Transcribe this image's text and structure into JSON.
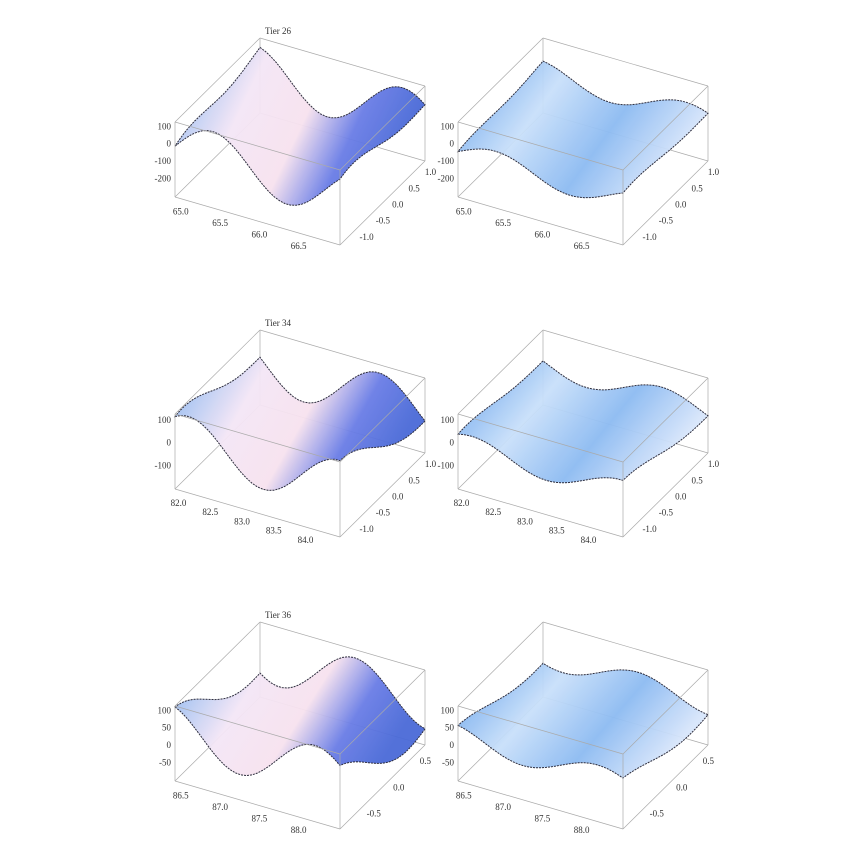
{
  "panels": [
    {
      "title": "Tier 26",
      "zticks": [
        "100",
        "0",
        "-100",
        "-200"
      ],
      "xticks": [
        "65.0",
        "65.5",
        "66.0",
        "66.5"
      ],
      "yticks": [
        "1.0",
        "0.5",
        "0.0",
        "-0.5",
        "-1.0"
      ]
    },
    {
      "zticks": [
        "100",
        "0",
        "-100",
        "-200"
      ],
      "xticks": [
        "65.0",
        "65.5",
        "66.0",
        "66.5"
      ],
      "yticks": [
        "1.0",
        "0.5",
        "0.0",
        "-0.5",
        "-1.0"
      ]
    },
    {
      "title": "Tier 34",
      "zticks": [
        "100",
        "0",
        "-100"
      ],
      "xticks": [
        "82.0",
        "82.5",
        "83.0",
        "83.5",
        "84.0"
      ],
      "yticks": [
        "1.0",
        "0.5",
        "0.0",
        "-0.5",
        "-1.0"
      ]
    },
    {
      "zticks": [
        "100",
        "0",
        "-100"
      ],
      "xticks": [
        "82.0",
        "82.5",
        "83.0",
        "83.5",
        "84.0"
      ],
      "yticks": [
        "1.0",
        "0.5",
        "0.0",
        "-0.5",
        "-1.0"
      ]
    },
    {
      "title": "Tier 36",
      "zticks": [
        "100",
        "50",
        "0",
        "-50"
      ],
      "xticks": [
        "86.5",
        "87.0",
        "87.5",
        "88.0"
      ],
      "yticks": [
        "0.5",
        "0.0",
        "-0.5"
      ]
    },
    {
      "zticks": [
        "100",
        "50",
        "0",
        "-50"
      ],
      "xticks": [
        "86.5",
        "87.0",
        "87.5",
        "88.0"
      ],
      "yticks": [
        "0.5",
        "0.0",
        "-0.5"
      ]
    }
  ]
}
